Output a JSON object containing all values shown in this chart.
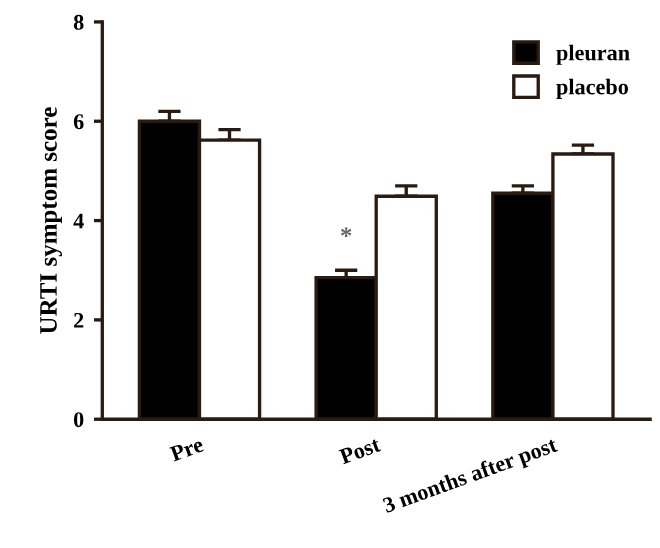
{
  "chart_data": {
    "type": "bar",
    "ylabel": "URTI symptom score",
    "categories": [
      "Pre",
      "Post",
      "3 months after post"
    ],
    "series": [
      {
        "name": "pleuran",
        "color": "#000000",
        "values": [
          6.0,
          2.85,
          4.55
        ],
        "errors": [
          [
            6.0,
            6.2
          ],
          [
            2.85,
            3.0
          ],
          [
            4.55,
            4.7
          ]
        ]
      },
      {
        "name": "placebo",
        "color": "#ffffff",
        "values": [
          5.62,
          4.49,
          5.34
        ],
        "errors": [
          [
            5.62,
            5.83
          ],
          [
            4.49,
            4.7
          ],
          [
            5.34,
            5.52
          ]
        ]
      }
    ],
    "ylim": [
      0,
      8
    ],
    "yticks": [
      0,
      2,
      4,
      6,
      8
    ],
    "grid": false,
    "legend": "top right",
    "annotations": [
      {
        "text": "*",
        "x": "Post",
        "y": 3.65
      }
    ]
  }
}
